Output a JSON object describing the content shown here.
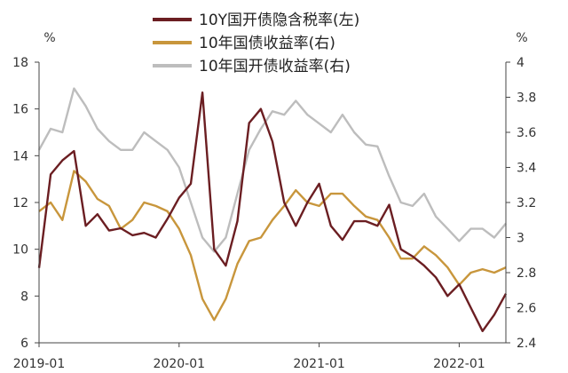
{
  "chart_data": {
    "type": "line",
    "legend_position": "top-center",
    "grid": false,
    "y_left": {
      "unit": "%",
      "range": [
        6,
        18
      ],
      "ticks": [
        6,
        8,
        10,
        12,
        14,
        16,
        18
      ]
    },
    "y_right": {
      "unit": "%",
      "range": [
        2.4,
        4.0
      ],
      "ticks": [
        "2.4",
        "2.6",
        "2.8",
        "3",
        "3.2",
        "3.4",
        "3.6",
        "3.8",
        "4"
      ]
    },
    "x": {
      "range": [
        "2019-01",
        "2022-05"
      ],
      "tick_labels": [
        "2019-01",
        "2020-01",
        "2021-01",
        "2022-01"
      ]
    },
    "series": [
      {
        "name": "10Y国开债隐含税率(左)",
        "axis": "left",
        "color": "#6b1e22",
        "points": [
          [
            "2019-01",
            9.2
          ],
          [
            "2019-02",
            13.2
          ],
          [
            "2019-03",
            13.8
          ],
          [
            "2019-04",
            14.2
          ],
          [
            "2019-05",
            11.0
          ],
          [
            "2019-06",
            11.5
          ],
          [
            "2019-07",
            10.8
          ],
          [
            "2019-08",
            10.9
          ],
          [
            "2019-09",
            10.6
          ],
          [
            "2019-10",
            10.7
          ],
          [
            "2019-11",
            10.5
          ],
          [
            "2019-12",
            11.3
          ],
          [
            "2020-01",
            12.2
          ],
          [
            "2020-02",
            12.8
          ],
          [
            "2020-03",
            16.7
          ],
          [
            "2020-04",
            10.0
          ],
          [
            "2020-05",
            9.3
          ],
          [
            "2020-06",
            11.2
          ],
          [
            "2020-07",
            15.4
          ],
          [
            "2020-08",
            16.0
          ],
          [
            "2020-09",
            14.6
          ],
          [
            "2020-10",
            12.0
          ],
          [
            "2020-11",
            11.0
          ],
          [
            "2020-12",
            12.0
          ],
          [
            "2021-01",
            12.8
          ],
          [
            "2021-02",
            11.0
          ],
          [
            "2021-03",
            10.4
          ],
          [
            "2021-04",
            11.2
          ],
          [
            "2021-05",
            11.2
          ],
          [
            "2021-06",
            11.0
          ],
          [
            "2021-07",
            11.9
          ],
          [
            "2021-08",
            10.0
          ],
          [
            "2021-09",
            9.7
          ],
          [
            "2021-10",
            9.3
          ],
          [
            "2021-11",
            8.8
          ],
          [
            "2021-12",
            8.0
          ],
          [
            "2022-01",
            8.5
          ],
          [
            "2022-02",
            7.5
          ],
          [
            "2022-03",
            6.5
          ],
          [
            "2022-04",
            7.2
          ],
          [
            "2022-05",
            8.1
          ]
        ]
      },
      {
        "name": "10年国债收益率(右)",
        "axis": "right",
        "color": "#c8963c",
        "points": [
          [
            "2019-01",
            3.15
          ],
          [
            "2019-02",
            3.2
          ],
          [
            "2019-03",
            3.1
          ],
          [
            "2019-04",
            3.38
          ],
          [
            "2019-05",
            3.32
          ],
          [
            "2019-06",
            3.22
          ],
          [
            "2019-07",
            3.18
          ],
          [
            "2019-08",
            3.05
          ],
          [
            "2019-09",
            3.1
          ],
          [
            "2019-10",
            3.2
          ],
          [
            "2019-11",
            3.18
          ],
          [
            "2019-12",
            3.15
          ],
          [
            "2020-01",
            3.05
          ],
          [
            "2020-02",
            2.9
          ],
          [
            "2020-03",
            2.65
          ],
          [
            "2020-04",
            2.53
          ],
          [
            "2020-05",
            2.65
          ],
          [
            "2020-06",
            2.85
          ],
          [
            "2020-07",
            2.98
          ],
          [
            "2020-08",
            3.0
          ],
          [
            "2020-09",
            3.1
          ],
          [
            "2020-10",
            3.18
          ],
          [
            "2020-11",
            3.27
          ],
          [
            "2020-12",
            3.2
          ],
          [
            "2021-01",
            3.18
          ],
          [
            "2021-02",
            3.25
          ],
          [
            "2021-03",
            3.25
          ],
          [
            "2021-04",
            3.18
          ],
          [
            "2021-05",
            3.12
          ],
          [
            "2021-06",
            3.1
          ],
          [
            "2021-07",
            3.0
          ],
          [
            "2021-08",
            2.88
          ],
          [
            "2021-09",
            2.88
          ],
          [
            "2021-10",
            2.95
          ],
          [
            "2021-11",
            2.9
          ],
          [
            "2021-12",
            2.83
          ],
          [
            "2022-01",
            2.73
          ],
          [
            "2022-02",
            2.8
          ],
          [
            "2022-03",
            2.82
          ],
          [
            "2022-04",
            2.8
          ],
          [
            "2022-05",
            2.83
          ]
        ]
      },
      {
        "name": "10年国开债收益率(右)",
        "axis": "right",
        "color": "#bdbdbd",
        "points": [
          [
            "2019-01",
            3.5
          ],
          [
            "2019-02",
            3.62
          ],
          [
            "2019-03",
            3.6
          ],
          [
            "2019-04",
            3.85
          ],
          [
            "2019-05",
            3.75
          ],
          [
            "2019-06",
            3.62
          ],
          [
            "2019-07",
            3.55
          ],
          [
            "2019-08",
            3.5
          ],
          [
            "2019-09",
            3.5
          ],
          [
            "2019-10",
            3.6
          ],
          [
            "2019-11",
            3.55
          ],
          [
            "2019-12",
            3.5
          ],
          [
            "2020-01",
            3.4
          ],
          [
            "2020-02",
            3.2
          ],
          [
            "2020-03",
            3.0
          ],
          [
            "2020-04",
            2.92
          ],
          [
            "2020-05",
            3.0
          ],
          [
            "2020-06",
            3.25
          ],
          [
            "2020-07",
            3.5
          ],
          [
            "2020-08",
            3.62
          ],
          [
            "2020-09",
            3.72
          ],
          [
            "2020-10",
            3.7
          ],
          [
            "2020-11",
            3.78
          ],
          [
            "2020-12",
            3.7
          ],
          [
            "2021-01",
            3.65
          ],
          [
            "2021-02",
            3.6
          ],
          [
            "2021-03",
            3.7
          ],
          [
            "2021-04",
            3.6
          ],
          [
            "2021-05",
            3.53
          ],
          [
            "2021-06",
            3.52
          ],
          [
            "2021-07",
            3.35
          ],
          [
            "2021-08",
            3.2
          ],
          [
            "2021-09",
            3.18
          ],
          [
            "2021-10",
            3.25
          ],
          [
            "2021-11",
            3.12
          ],
          [
            "2021-12",
            3.05
          ],
          [
            "2022-01",
            2.98
          ],
          [
            "2022-02",
            3.05
          ],
          [
            "2022-03",
            3.05
          ],
          [
            "2022-04",
            3.0
          ],
          [
            "2022-05",
            3.08
          ]
        ]
      }
    ]
  }
}
